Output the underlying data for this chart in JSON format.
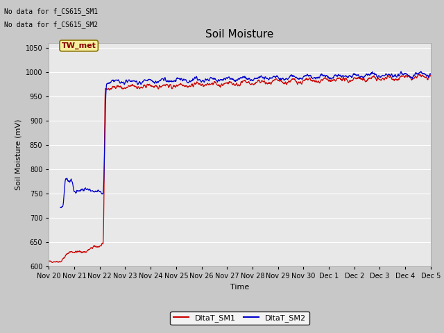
{
  "title": "Soil Moisture",
  "ylabel": "Soil Moisture (mV)",
  "xlabel": "Time",
  "ylim": [
    600,
    1060
  ],
  "yticks": [
    600,
    650,
    700,
    750,
    800,
    850,
    900,
    950,
    1000,
    1050
  ],
  "fig_bg_color": "#c8c8c8",
  "plot_bg_color": "#e8e8e8",
  "annotations": [
    "No data for f_CS615_SM1",
    "No data for f_CS615_SM2"
  ],
  "legend_box_label": "TW_met",
  "legend_box_color": "#f5f0a0",
  "legend_box_edge": "#8B7000",
  "sm1_color": "#cc0000",
  "sm2_color": "#0000cc",
  "sm1_label": "DltaT_SM1",
  "sm2_label": "DltaT_SM2",
  "xtick_labels": [
    "Nov 20",
    "Nov 21",
    "Nov 22",
    "Nov 23",
    "Nov 24",
    "Nov 25",
    "Nov 26",
    "Nov 27",
    "Nov 28",
    "Nov 29",
    "Nov 30",
    "Dec 1",
    "Dec 2",
    "Dec 3",
    "Dec 4",
    "Dec 5"
  ],
  "title_fontsize": 11,
  "axis_label_fontsize": 8,
  "tick_fontsize": 7,
  "annotation_fontsize": 7,
  "legend_fontsize": 8
}
